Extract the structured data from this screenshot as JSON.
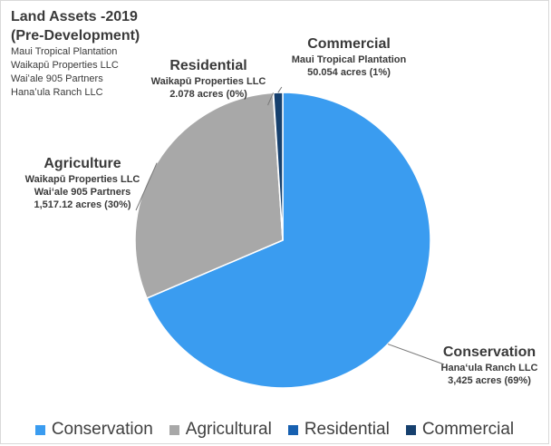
{
  "title": {
    "line1": "Land Assets -2019",
    "line2": "(Pre-Development)",
    "owners": [
      "Maui Tropical Plantation",
      "Waikapū Properties LLC",
      "Waiʻale 905 Partners",
      "Hanaʻula Ranch LLC"
    ]
  },
  "labels": {
    "commercial": {
      "name": "Commercial",
      "lines": [
        "Maui Tropical Plantation",
        "50.054 acres (1%)"
      ]
    },
    "residential": {
      "name": "Residential",
      "lines": [
        "Waikapū Properties LLC",
        "2.078 acres (0%)"
      ]
    },
    "agriculture": {
      "name": "Agriculture",
      "lines": [
        "Waikapū Properties LLC",
        "Waiʻale 905 Partners",
        "1,517.12 acres (30%)"
      ]
    },
    "conservation": {
      "name": "Conservation",
      "lines": [
        "Hanaʻula Ranch LLC",
        "3,425 acres (69%)"
      ]
    }
  },
  "chart_data": {
    "type": "pie",
    "title": "Land Assets -2019 (Pre-Development)",
    "categories": [
      "Conservation",
      "Agricultural",
      "Residential",
      "Commercial"
    ],
    "values": [
      3425,
      1517.12,
      2.078,
      50.054
    ],
    "units": "acres",
    "percent_labels": [
      "69%",
      "30%",
      "0%",
      "1%"
    ],
    "colors": [
      "#3a9cf0",
      "#a8a8a8",
      "#1760b0",
      "#16406e"
    ],
    "legend_position": "bottom",
    "start_angle_deg": 0,
    "direction": "clockwise"
  }
}
